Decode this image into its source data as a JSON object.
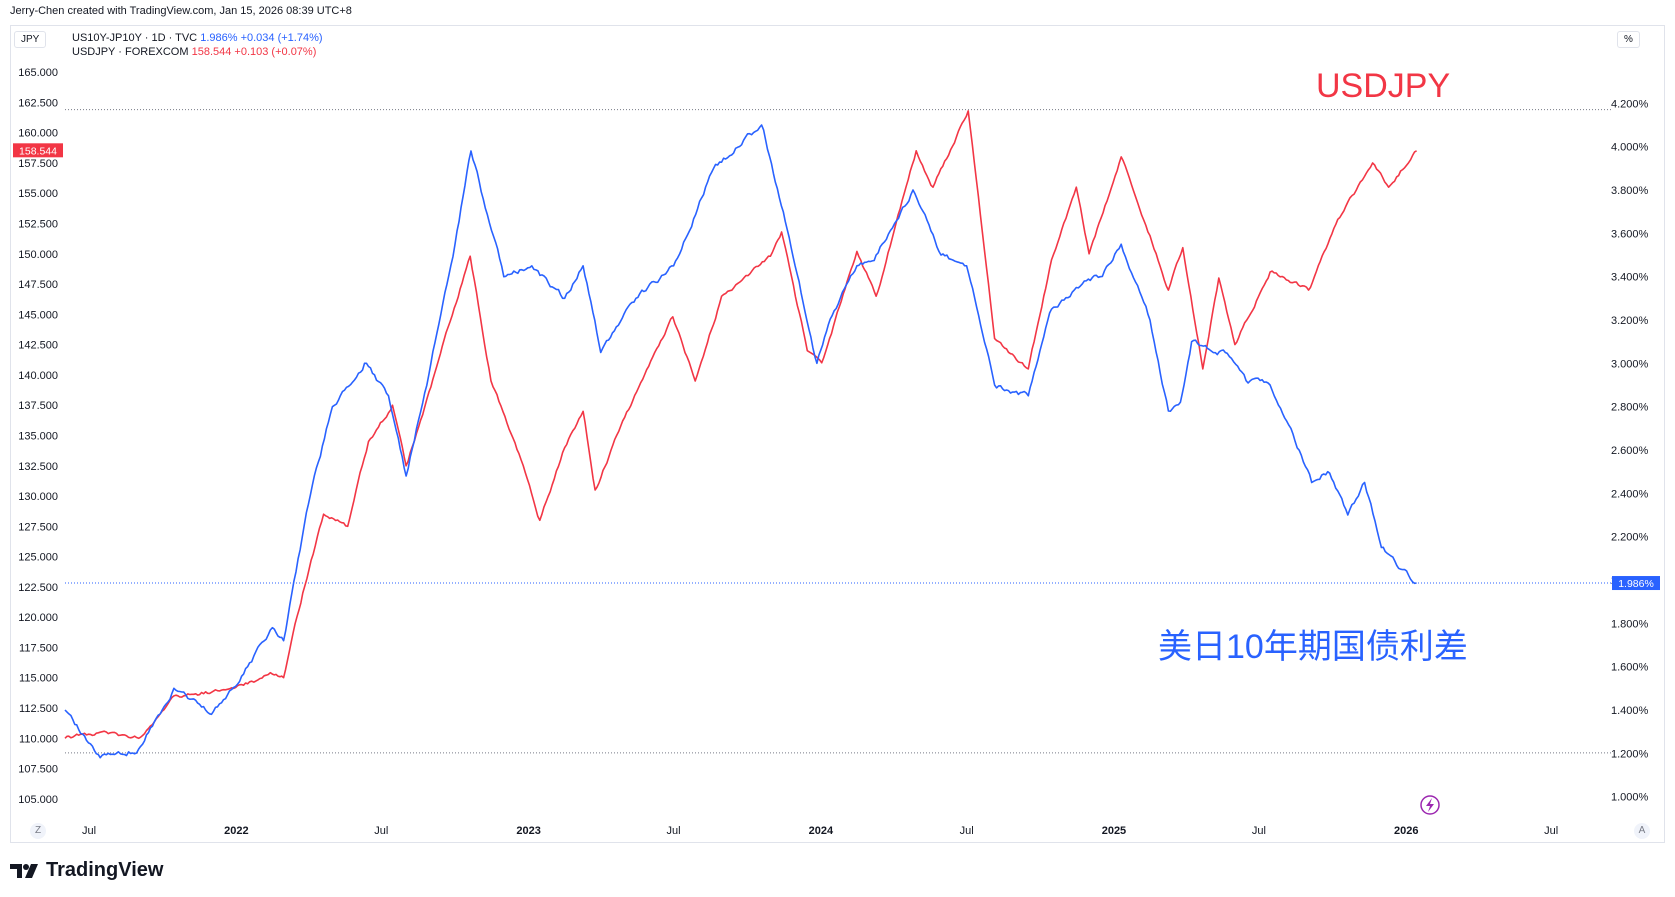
{
  "header": {
    "credit": "Jerry-Chen created with TradingView.com, Jan 15, 2026 08:39 UTC+8"
  },
  "left_axis_unit": "JPY",
  "right_axis_unit": "%",
  "legend": {
    "spread": {
      "name": "US10Y-JP10Y · 1D · TVC",
      "value": "1.986%",
      "change": "+0.034 (+1.74%)"
    },
    "usdjpy": {
      "name": "USDJPY · FOREXCOM",
      "value": "158.544",
      "change": "+0.103 (+0.07%)"
    }
  },
  "annotations": {
    "usdjpy_label": "USDJPY",
    "spread_label": "美日10年期国债利差"
  },
  "price_tags": {
    "usdjpy": "158.544",
    "spread": "1.986%"
  },
  "corner_buttons": {
    "left": "Z",
    "right": "A"
  },
  "footer": {
    "brand": "TradingView"
  },
  "colors": {
    "usdjpy": "#f23645",
    "spread": "#2962ff",
    "grid": "#e0e3eb",
    "axis_text": "#131722"
  },
  "chart_data": {
    "type": "line",
    "x_axis": {
      "ticks": [
        "Jul",
        "2022",
        "Jul",
        "2023",
        "Jul",
        "2024",
        "Jul",
        "2025",
        "Jul",
        "2026",
        "Jul"
      ],
      "range": [
        "2021-06-01",
        "2026-09-15"
      ]
    },
    "y_left": {
      "unit": "JPY",
      "range": [
        103.75,
        166.0
      ],
      "ticks": [
        "165.000",
        "162.500",
        "160.000",
        "157.500",
        "155.000",
        "152.500",
        "150.000",
        "147.500",
        "145.000",
        "142.500",
        "140.000",
        "137.500",
        "135.000",
        "132.500",
        "130.000",
        "127.500",
        "125.000",
        "122.500",
        "120.000",
        "117.500",
        "115.000",
        "112.500",
        "110.000",
        "107.500",
        "105.000"
      ]
    },
    "y_right": {
      "unit": "%",
      "range": [
        0.92,
        4.4
      ],
      "ticks": [
        "4.200%",
        "4.000%",
        "3.800%",
        "3.600%",
        "3.400%",
        "3.200%",
        "3.000%",
        "2.800%",
        "2.600%",
        "2.400%",
        "2.200%",
        "2.000%",
        "1.800%",
        "1.600%",
        "1.400%",
        "1.200%",
        "1.000%"
      ]
    },
    "series": [
      {
        "name": "USDJPY · FOREXCOM",
        "axis": "left",
        "color": "#f23645",
        "points": [
          [
            "2021-06-01",
            110.0
          ],
          [
            "2021-07-15",
            110.5
          ],
          [
            "2021-09-01",
            110.0
          ],
          [
            "2021-10-15",
            113.5
          ],
          [
            "2021-12-01",
            113.8
          ],
          [
            "2022-01-15",
            114.5
          ],
          [
            "2022-02-15",
            115.3
          ],
          [
            "2022-03-01",
            115.0
          ],
          [
            "2022-03-25",
            122.0
          ],
          [
            "2022-04-20",
            128.5
          ],
          [
            "2022-05-20",
            127.5
          ],
          [
            "2022-06-15",
            134.5
          ],
          [
            "2022-07-15",
            137.5
          ],
          [
            "2022-08-01",
            132.5
          ],
          [
            "2022-09-01",
            139.0
          ],
          [
            "2022-09-20",
            143.5
          ],
          [
            "2022-10-20",
            149.8
          ],
          [
            "2022-11-15",
            139.5
          ],
          [
            "2022-12-20",
            133.5
          ],
          [
            "2023-01-15",
            128.0
          ],
          [
            "2023-02-15",
            134.0
          ],
          [
            "2023-03-10",
            137.0
          ],
          [
            "2023-03-25",
            130.5
          ],
          [
            "2023-05-01",
            136.5
          ],
          [
            "2023-06-30",
            144.8
          ],
          [
            "2023-07-28",
            139.5
          ],
          [
            "2023-08-30",
            146.5
          ],
          [
            "2023-10-30",
            149.8
          ],
          [
            "2023-11-13",
            151.8
          ],
          [
            "2023-12-15",
            142.0
          ],
          [
            "2024-01-02",
            141.0
          ],
          [
            "2024-02-15",
            150.2
          ],
          [
            "2024-03-10",
            146.5
          ],
          [
            "2024-04-29",
            158.5
          ],
          [
            "2024-05-20",
            155.5
          ],
          [
            "2024-07-03",
            161.8
          ],
          [
            "2024-08-05",
            143.0
          ],
          [
            "2024-09-16",
            140.5
          ],
          [
            "2024-10-15",
            149.5
          ],
          [
            "2024-11-15",
            155.5
          ],
          [
            "2024-12-01",
            150.0
          ],
          [
            "2025-01-10",
            158.0
          ],
          [
            "2025-02-15",
            151.5
          ],
          [
            "2025-03-10",
            147.0
          ],
          [
            "2025-03-28",
            150.5
          ],
          [
            "2025-04-22",
            140.5
          ],
          [
            "2025-05-12",
            148.0
          ],
          [
            "2025-06-01",
            142.5
          ],
          [
            "2025-07-15",
            148.5
          ],
          [
            "2025-09-01",
            147.0
          ],
          [
            "2025-10-10",
            153.0
          ],
          [
            "2025-11-20",
            157.5
          ],
          [
            "2025-12-10",
            155.5
          ],
          [
            "2026-01-14",
            158.5
          ]
        ]
      },
      {
        "name": "US10Y-JP10Y · 1D · TVC",
        "axis": "right",
        "color": "#2962ff",
        "points": [
          [
            "2021-06-01",
            1.4
          ],
          [
            "2021-07-15",
            1.18
          ],
          [
            "2021-09-01",
            1.22
          ],
          [
            "2021-10-15",
            1.5
          ],
          [
            "2021-12-01",
            1.38
          ],
          [
            "2022-01-15",
            1.6
          ],
          [
            "2022-02-15",
            1.78
          ],
          [
            "2022-03-01",
            1.72
          ],
          [
            "2022-04-01",
            2.35
          ],
          [
            "2022-05-01",
            2.8
          ],
          [
            "2022-06-10",
            3.0
          ],
          [
            "2022-07-10",
            2.85
          ],
          [
            "2022-08-01",
            2.48
          ],
          [
            "2022-09-01",
            3.0
          ],
          [
            "2022-10-01",
            3.55
          ],
          [
            "2022-10-21",
            3.98
          ],
          [
            "2022-12-01",
            3.4
          ],
          [
            "2023-01-05",
            3.45
          ],
          [
            "2023-02-15",
            3.3
          ],
          [
            "2023-03-10",
            3.45
          ],
          [
            "2023-04-01",
            3.05
          ],
          [
            "2023-05-15",
            3.3
          ],
          [
            "2023-07-01",
            3.45
          ],
          [
            "2023-08-20",
            3.9
          ],
          [
            "2023-10-19",
            4.1
          ],
          [
            "2023-11-15",
            3.7
          ],
          [
            "2023-12-27",
            3.0
          ],
          [
            "2024-01-15",
            3.22
          ],
          [
            "2024-02-15",
            3.45
          ],
          [
            "2024-03-10",
            3.5
          ],
          [
            "2024-04-25",
            3.8
          ],
          [
            "2024-05-30",
            3.5
          ],
          [
            "2024-07-01",
            3.45
          ],
          [
            "2024-08-05",
            2.9
          ],
          [
            "2024-09-16",
            2.85
          ],
          [
            "2024-10-15",
            3.25
          ],
          [
            "2024-11-15",
            3.35
          ],
          [
            "2024-12-15",
            3.4
          ],
          [
            "2025-01-10",
            3.55
          ],
          [
            "2025-02-15",
            3.2
          ],
          [
            "2025-03-10",
            2.78
          ],
          [
            "2025-03-25",
            2.82
          ],
          [
            "2025-04-08",
            3.1
          ],
          [
            "2025-05-20",
            3.05
          ],
          [
            "2025-06-15",
            2.92
          ],
          [
            "2025-07-15",
            2.9
          ],
          [
            "2025-08-10",
            2.7
          ],
          [
            "2025-09-05",
            2.45
          ],
          [
            "2025-09-25",
            2.5
          ],
          [
            "2025-10-20",
            2.3
          ],
          [
            "2025-11-10",
            2.45
          ],
          [
            "2025-12-01",
            2.15
          ],
          [
            "2025-12-25",
            2.05
          ],
          [
            "2026-01-14",
            1.986
          ]
        ]
      }
    ],
    "reference_lines": [
      {
        "axis": "left",
        "value": 161.9
      },
      {
        "axis": "left",
        "value": 108.8
      },
      {
        "axis": "right",
        "value": 1.986
      }
    ]
  }
}
